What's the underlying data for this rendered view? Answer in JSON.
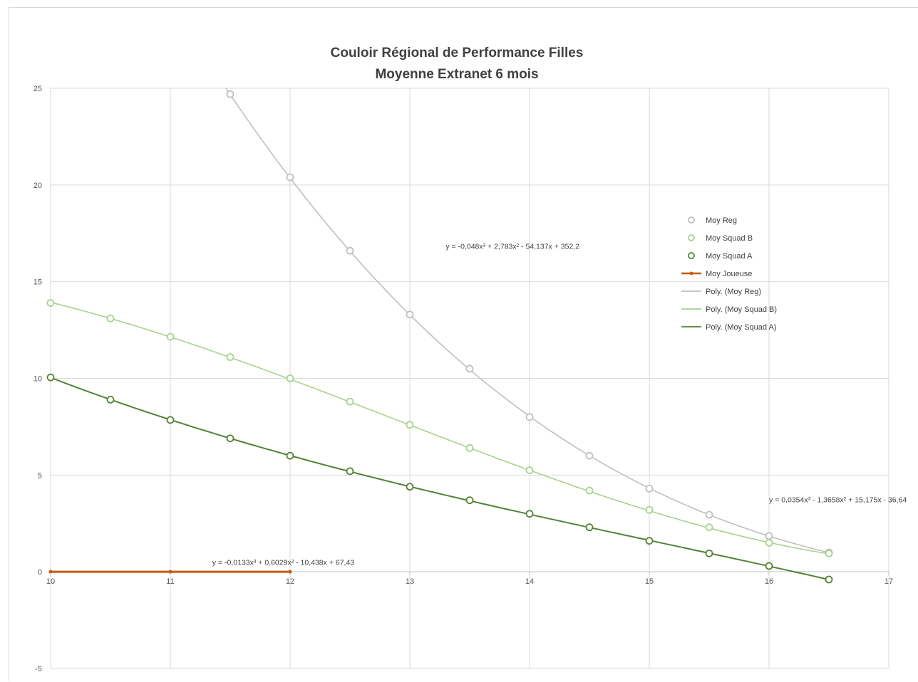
{
  "chart_data": {
    "type": "scatter",
    "title": [
      "Couloir Régional de Performance Filles",
      "Moyenne Extranet 6 mois"
    ],
    "xlim": [
      10,
      17
    ],
    "ylim": [
      -5,
      25
    ],
    "x_ticks": [
      10,
      11,
      12,
      13,
      14,
      15,
      16,
      17
    ],
    "y_ticks": [
      -5,
      0,
      5,
      10,
      15,
      20,
      25
    ],
    "grid": true,
    "legend_position": "right",
    "series": [
      {
        "name": "Moy Reg",
        "kind": "markers",
        "color": "#bfbfbf",
        "x": [
          11.5,
          12,
          12.5,
          13,
          13.5,
          14,
          14.5,
          15,
          15.5,
          16,
          16.5
        ],
        "y": [
          24.7,
          20.4,
          16.6,
          13.3,
          10.5,
          8.0,
          6.0,
          4.3,
          2.95,
          1.85,
          1.0
        ]
      },
      {
        "name": "Moy Squad B",
        "kind": "markers",
        "color": "#a9d18e",
        "x": [
          10,
          10.5,
          11,
          11.5,
          12,
          12.5,
          13,
          13.5,
          14,
          14.5,
          15,
          15.5,
          16,
          16.5
        ],
        "y": [
          13.9,
          13.1,
          12.15,
          11.1,
          10.0,
          8.8,
          7.6,
          6.4,
          5.25,
          4.2,
          3.2,
          2.3,
          1.5,
          0.95
        ]
      },
      {
        "name": "Moy Squad A",
        "kind": "markers",
        "color": "#548235",
        "x": [
          10,
          10.5,
          11,
          11.5,
          12,
          12.5,
          13,
          13.5,
          14,
          14.5,
          15,
          15.5,
          16,
          16.5
        ],
        "y": [
          10.05,
          8.9,
          7.85,
          6.9,
          6.0,
          5.2,
          4.4,
          3.7,
          3.0,
          2.3,
          1.6,
          0.95,
          0.3,
          -0.4
        ]
      },
      {
        "name": "Moy Joueuse",
        "kind": "line-markers",
        "color": "#c55a11",
        "x": [
          10,
          11,
          12
        ],
        "y": [
          0,
          0,
          0
        ]
      },
      {
        "name": "Poly. (Moy Reg)",
        "kind": "trendline",
        "color": "#bfbfbf",
        "coefficients": [
          -0.048,
          2.783,
          -54.137,
          352.2
        ],
        "x_range": [
          11.4,
          16.5
        ]
      },
      {
        "name": "Poly. (Moy Squad B)",
        "kind": "trendline",
        "color": "#a9d18e",
        "coefficients": [
          0.0354,
          -1.3658,
          15.175,
          -36.64
        ],
        "x_range": [
          10,
          16.5
        ]
      },
      {
        "name": "Poly. (Moy Squad A)",
        "kind": "trendline",
        "color": "#548235",
        "coefficients": [
          -0.0133,
          0.6029,
          -10.438,
          67.43
        ],
        "x_range": [
          10,
          16.5
        ]
      }
    ],
    "annotations": [
      {
        "text": "y = -0,048x³ + 2,783x² - 54,137x + 352,2",
        "anchor_x": 13.3,
        "anchor_y": 16.7
      },
      {
        "text": "y = 0,0354x³ - 1,3658x² + 15,175x - 36,64",
        "anchor_x": 16.0,
        "anchor_y": 3.6
      },
      {
        "text": "y = -0,0133x³ + 0,6029x² - 10,438x + 67,43",
        "anchor_x": 11.35,
        "anchor_y": 0.35
      }
    ]
  }
}
